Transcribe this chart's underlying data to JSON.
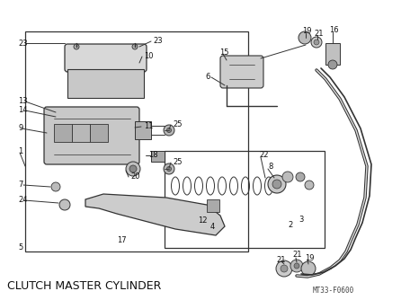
{
  "title": "CLUTCH MASTER CYLINDER",
  "title_fontsize": 9,
  "code": "MT33-F0600",
  "bg_color": "#ffffff",
  "line_color": "#333333",
  "fig_width": 4.46,
  "fig_height": 3.34,
  "dpi": 100
}
